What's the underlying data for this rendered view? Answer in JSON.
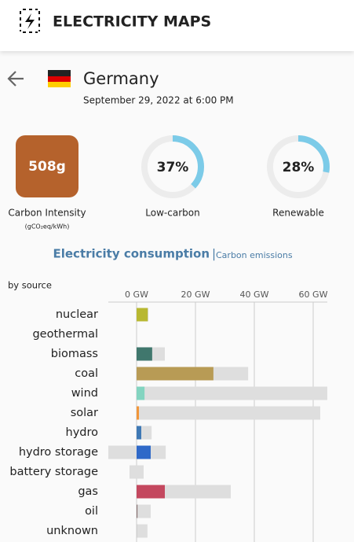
{
  "header": {
    "title": "ELECTRICITY MAPS"
  },
  "zone": {
    "name": "Germany",
    "date": "September 29, 2022 at 6:00 PM"
  },
  "stats": {
    "carbon_intensity": {
      "value": 508,
      "label": "508g",
      "title": "Carbon Intensity",
      "unit": "(gCO₂eq/kWh)"
    },
    "low_carbon": {
      "value": 37,
      "label": "37%",
      "title": "Low-carbon"
    },
    "renewable": {
      "value": 28,
      "label": "28%",
      "title": "Renewable"
    }
  },
  "tabs": {
    "active": "Electricity consumption",
    "separator": "|",
    "other": "Carbon emissions"
  },
  "chart_data": {
    "type": "bar",
    "subtitle": "by source",
    "categories": [
      "nuclear",
      "geothermal",
      "biomass",
      "coal",
      "wind",
      "solar",
      "hydro",
      "hydro storage",
      "battery storage",
      "gas",
      "oil",
      "unknown"
    ],
    "values": [
      3.8,
      0,
      5.3,
      26.1,
      2.7,
      0.8,
      1.6,
      4.8,
      0,
      9.6,
      0.3,
      0.2
    ],
    "colors": [
      "#b8b831",
      "#7f5b3c",
      "#40776d",
      "#b89b55",
      "#83d4c0",
      "#f1963a",
      "#3f79b5",
      "#2f69c8",
      "#a4d1ea",
      "#c4485f",
      "#877070",
      "#cccccc"
    ],
    "capacity": [
      [
        0,
        4
      ],
      [
        0,
        0
      ],
      [
        0,
        9.6
      ],
      [
        0,
        37.9
      ],
      [
        0,
        64.8
      ],
      [
        0,
        62.4
      ],
      [
        0,
        5.1
      ],
      [
        -9.6,
        9.9
      ],
      [
        -2.4,
        2.4
      ],
      [
        0,
        32
      ],
      [
        0,
        4.8
      ],
      [
        0,
        3.7
      ]
    ],
    "capacity_color": "#dedede",
    "xlim": [
      -9.6,
      64.8
    ],
    "xticks": [
      {
        "value": 0,
        "label": "0 GW"
      },
      {
        "value": 20,
        "label": "20 GW"
      },
      {
        "value": 40,
        "label": "40 GW"
      },
      {
        "value": 60,
        "label": "60 GW"
      }
    ],
    "grid": true
  }
}
